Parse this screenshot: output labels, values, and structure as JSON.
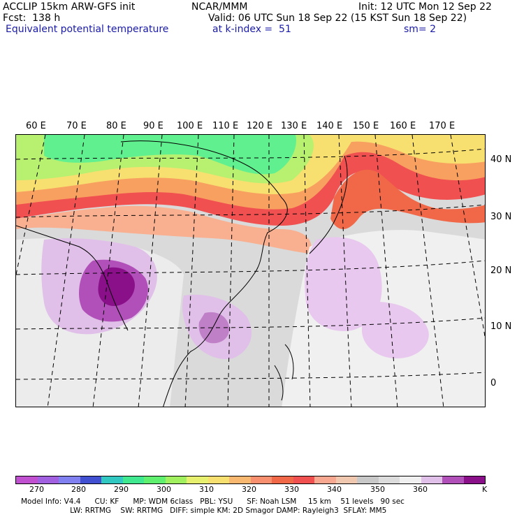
{
  "header": {
    "line1_left": "ACCLIP 15km ARW-GFS init",
    "line1_mid": "NCAR/MMM",
    "line1_right": "Init: 12 UTC Mon 12 Sep 22",
    "line2_left": "Fcst:  138 h",
    "line2_right": "Valid: 06 UTC Sun 18 Sep 22 (15 KST Sun 18 Sep 22)",
    "line3_left": "Equivalent potential temperature",
    "line3_mid": "at k-index =  51",
    "line3_right": "sm= 2"
  },
  "lon_labels": [
    "60 E",
    "70 E",
    "80 E",
    "90 E",
    "100 E",
    "110 E",
    "120 E",
    "130 E",
    "140 E",
    "150 E",
    "160 E",
    "170 E"
  ],
  "lat_labels": [
    "40 N",
    "30 N",
    "20 N",
    "10 N",
    "0"
  ],
  "colorbar": {
    "colors": [
      "#c050d0",
      "#a060e0",
      "#8080f0",
      "#4050d0",
      "#30c8c0",
      "#40e890",
      "#60f070",
      "#a0f060",
      "#e8f070",
      "#f8e070",
      "#f8b870",
      "#f89070",
      "#f06848",
      "#f05050",
      "#f8a890",
      "#f0c8b0",
      "#c8c8c8",
      "#dcdcdc",
      "#f0f0f0",
      "#e0c0e8",
      "#b050b8",
      "#8a108a"
    ],
    "ticks": [
      "270",
      "280",
      "290",
      "300",
      "310",
      "320",
      "330",
      "340",
      "350",
      "360"
    ],
    "unit": "K"
  },
  "footer": {
    "line1": "Model Info: V4.4      CU: KF      MP: WDM 6class   PBL: YSU      SF: Noah LSM     15 km    51 levels   90 sec",
    "line2": "                     LW: RRTMG    SW: RRTMG   DIFF: simple KM: 2D Smagor DAMP: Rayleigh3  SFLAY: MM5"
  }
}
